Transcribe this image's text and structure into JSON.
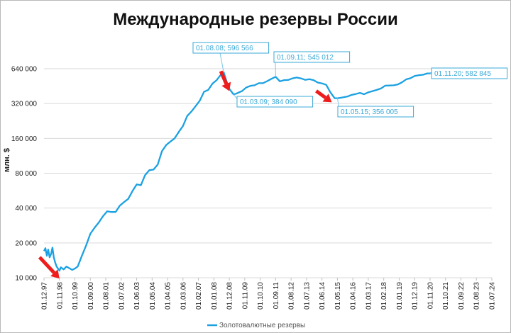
{
  "chart_data": {
    "type": "line",
    "title": "Международные резервы России",
    "ylabel": "млн. $",
    "yscale": "log2",
    "ylim": [
      10000,
      640000
    ],
    "yticks": [
      {
        "value": 10000,
        "label": "10 000"
      },
      {
        "value": 20000,
        "label": "20 000"
      },
      {
        "value": 40000,
        "label": "40 000"
      },
      {
        "value": 80000,
        "label": "80 000"
      },
      {
        "value": 160000,
        "label": "160 000"
      },
      {
        "value": 320000,
        "label": "320 000"
      },
      {
        "value": 640000,
        "label": "640 000"
      }
    ],
    "xticks": [
      "01.12.97",
      "01.11.98",
      "01.10.99",
      "01.09.00",
      "01.08.01",
      "01.07.02",
      "01.06.03",
      "01.05.04",
      "01.04.05",
      "01.03.06",
      "01.02.07",
      "01.01.08",
      "01.12.08",
      "01.11.09",
      "01.10.10",
      "01.09.11",
      "01.08.12",
      "01.07.13",
      "01.06.14",
      "01.05.15",
      "01.04.16",
      "01.03.17",
      "01.02.18",
      "01.01.19",
      "01.12.19",
      "01.11.20",
      "01.10.21",
      "01.09.22",
      "01.08.23",
      "01.07.24"
    ],
    "series": [
      {
        "name": "Золотовалютные резервы",
        "color": "#1ba1e2",
        "points": [
          [
            "01.12.97",
            17000
          ],
          [
            "01.01.98",
            18000
          ],
          [
            "01.02.98",
            15500
          ],
          [
            "01.03.98",
            17500
          ],
          [
            "01.04.98",
            15000
          ],
          [
            "01.05.98",
            16000
          ],
          [
            "01.06.98",
            18200
          ],
          [
            "01.07.98",
            15000
          ],
          [
            "01.08.98",
            13500
          ],
          [
            "01.09.98",
            12500
          ],
          [
            "01.10.98",
            12000
          ],
          [
            "01.11.98",
            11500
          ],
          [
            "01.12.98",
            12300
          ],
          [
            "01.02.99",
            11800
          ],
          [
            "01.04.99",
            12500
          ],
          [
            "01.06.99",
            12100
          ],
          [
            "01.08.99",
            11700
          ],
          [
            "01.10.99",
            12000
          ],
          [
            "01.12.99",
            12500
          ],
          [
            "01.03.00",
            15500
          ],
          [
            "01.06.00",
            19000
          ],
          [
            "01.09.00",
            24000
          ],
          [
            "01.12.00",
            27000
          ],
          [
            "01.03.01",
            30000
          ],
          [
            "01.06.01",
            34000
          ],
          [
            "01.09.01",
            37500
          ],
          [
            "01.12.01",
            37000
          ],
          [
            "01.03.02",
            37000
          ],
          [
            "01.06.02",
            42000
          ],
          [
            "01.09.02",
            45000
          ],
          [
            "01.12.02",
            48000
          ],
          [
            "01.03.03",
            56000
          ],
          [
            "01.06.03",
            64000
          ],
          [
            "01.09.03",
            63000
          ],
          [
            "01.12.03",
            77000
          ],
          [
            "01.03.04",
            85000
          ],
          [
            "01.06.04",
            86000
          ],
          [
            "01.09.04",
            95000
          ],
          [
            "01.12.04",
            124000
          ],
          [
            "01.03.05",
            140000
          ],
          [
            "01.06.05",
            150000
          ],
          [
            "01.09.05",
            160000
          ],
          [
            "01.12.05",
            182000
          ],
          [
            "01.03.06",
            205000
          ],
          [
            "01.06.06",
            250000
          ],
          [
            "01.09.06",
            273000
          ],
          [
            "01.12.06",
            304000
          ],
          [
            "01.03.07",
            340000
          ],
          [
            "01.06.07",
            405000
          ],
          [
            "01.09.07",
            420000
          ],
          [
            "01.12.07",
            476000
          ],
          [
            "01.03.08",
            510000
          ],
          [
            "01.06.08",
            569000
          ],
          [
            "01.08.08",
            596566
          ],
          [
            "01.10.08",
            500000
          ],
          [
            "01.12.08",
            430000
          ],
          [
            "01.03.09",
            384090
          ],
          [
            "01.05.09",
            390000
          ],
          [
            "01.07.09",
            400000
          ],
          [
            "01.09.09",
            410000
          ],
          [
            "01.12.09",
            440000
          ],
          [
            "01.03.10",
            455000
          ],
          [
            "01.06.10",
            460000
          ],
          [
            "01.09.10",
            480000
          ],
          [
            "01.12.10",
            480000
          ],
          [
            "01.03.11",
            500000
          ],
          [
            "01.06.11",
            523000
          ],
          [
            "01.09.11",
            545012
          ],
          [
            "01.12.11",
            498000
          ],
          [
            "01.03.12",
            510000
          ],
          [
            "01.06.12",
            512000
          ],
          [
            "01.09.12",
            528000
          ],
          [
            "01.12.12",
            537000
          ],
          [
            "01.03.13",
            528000
          ],
          [
            "01.06.13",
            513000
          ],
          [
            "01.09.13",
            520000
          ],
          [
            "01.12.13",
            510000
          ],
          [
            "01.03.14",
            486000
          ],
          [
            "01.06.14",
            478000
          ],
          [
            "01.09.14",
            465000
          ],
          [
            "01.12.14",
            400000
          ],
          [
            "01.03.15",
            356000
          ],
          [
            "01.05.15",
            356005
          ],
          [
            "01.08.15",
            360000
          ],
          [
            "01.12.15",
            368000
          ],
          [
            "01.03.16",
            380000
          ],
          [
            "01.06.16",
            387000
          ],
          [
            "01.09.16",
            396000
          ],
          [
            "01.12.16",
            385000
          ],
          [
            "01.03.17",
            400000
          ],
          [
            "01.06.17",
            410000
          ],
          [
            "01.09.17",
            420000
          ],
          [
            "01.12.17",
            432000
          ],
          [
            "01.03.18",
            457000
          ],
          [
            "01.06.18",
            458000
          ],
          [
            "01.09.18",
            460000
          ],
          [
            "01.12.18",
            468000
          ],
          [
            "01.03.19",
            488000
          ],
          [
            "01.06.19",
            518000
          ],
          [
            "01.09.19",
            530000
          ],
          [
            "01.12.19",
            554000
          ],
          [
            "01.03.20",
            563000
          ],
          [
            "01.06.20",
            568000
          ],
          [
            "01.09.20",
            583000
          ],
          [
            "01.11.20",
            582845
          ],
          [
            "01.01.21",
            590000
          ]
        ]
      }
    ],
    "annotations": [
      {
        "date": "01.08.08",
        "text": "01.08.08; 596 566"
      },
      {
        "date": "01.03.09",
        "text": "01.03.09; 384 090"
      },
      {
        "date": "01.09.11",
        "text": "01.09.11; 545 012"
      },
      {
        "date": "01.05.15",
        "text": "01.05.15; 356 005"
      },
      {
        "date": "01.11.20",
        "text": "01.11.20; 582 845"
      }
    ],
    "arrows": [
      "01.10.98",
      "01.11.08",
      "01.12.14"
    ],
    "arrow_color": "#ee1c1c",
    "grid": true,
    "legend_position": "bottom"
  }
}
